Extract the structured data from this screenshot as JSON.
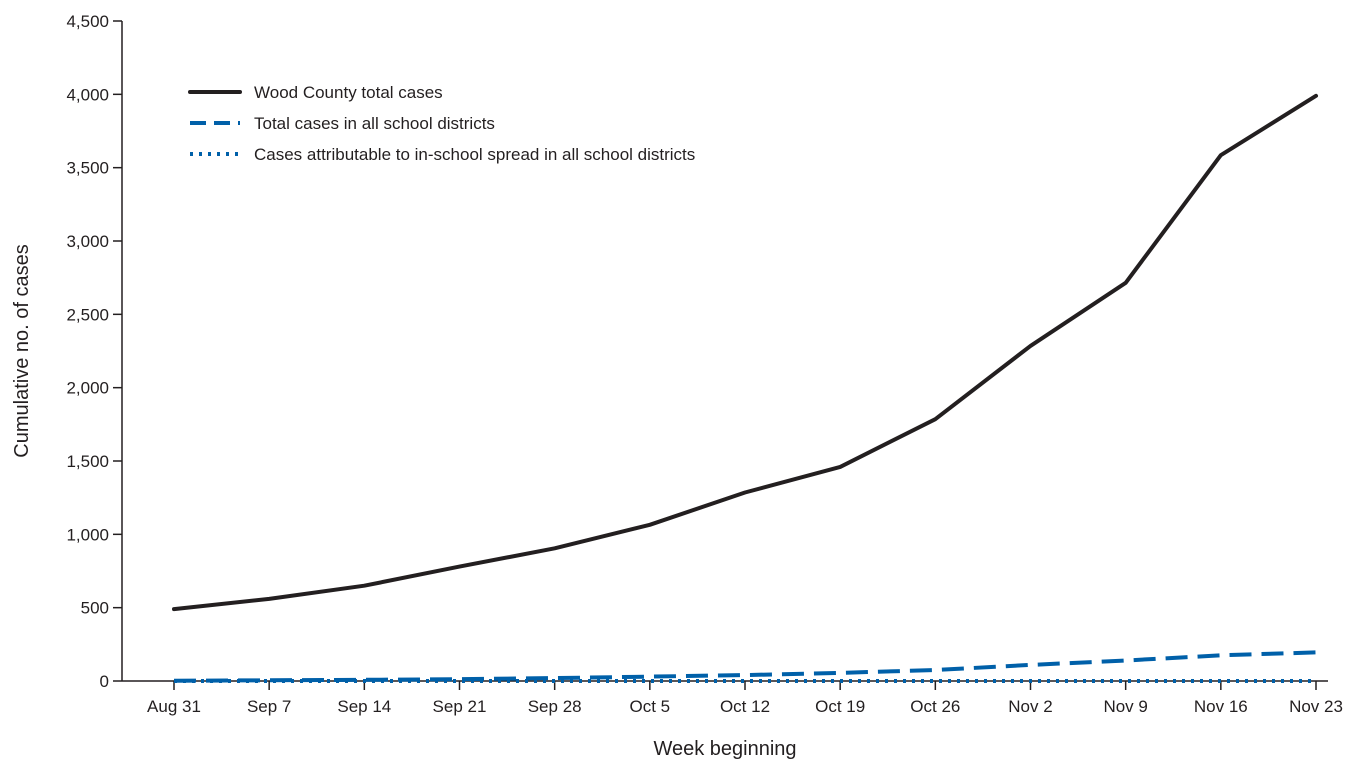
{
  "chart_data": {
    "type": "line",
    "xlabel": "Week beginning",
    "ylabel": "Cumulative no. of cases",
    "ylim": [
      0,
      4500
    ],
    "yticks": [
      0,
      500,
      1000,
      1500,
      2000,
      2500,
      3000,
      3500,
      4000,
      4500
    ],
    "ytick_labels": [
      "0",
      "500",
      "1,000",
      "1,500",
      "2,000",
      "2,500",
      "3,000",
      "3,500",
      "4,000",
      "4,500"
    ],
    "categories": [
      "Aug 31",
      "Sep 7",
      "Sep 14",
      "Sep 21",
      "Sep 28",
      "Oct 5",
      "Oct 12",
      "Oct 19",
      "Oct 26",
      "Nov 2",
      "Nov 9",
      "Nov 16",
      "Nov 23"
    ],
    "grid": false,
    "legend_position": "top-left",
    "series": [
      {
        "name": "Wood County total cases",
        "style": "solid",
        "color": "#231f20",
        "values": [
          490,
          560,
          650,
          780,
          905,
          1065,
          1285,
          1460,
          1785,
          2285,
          2715,
          3585,
          3990
        ]
      },
      {
        "name": "Total cases in all school districts",
        "style": "dashed",
        "color": "#0060a9",
        "values": [
          2,
          5,
          8,
          12,
          20,
          30,
          40,
          55,
          75,
          110,
          140,
          175,
          195
        ]
      },
      {
        "name": "Cases attributable to in-school spread in all school districts",
        "style": "dotted",
        "color": "#0060a9",
        "values": [
          0,
          0,
          0,
          0,
          0,
          0,
          0,
          0,
          0,
          0,
          0,
          0,
          0
        ]
      }
    ]
  }
}
